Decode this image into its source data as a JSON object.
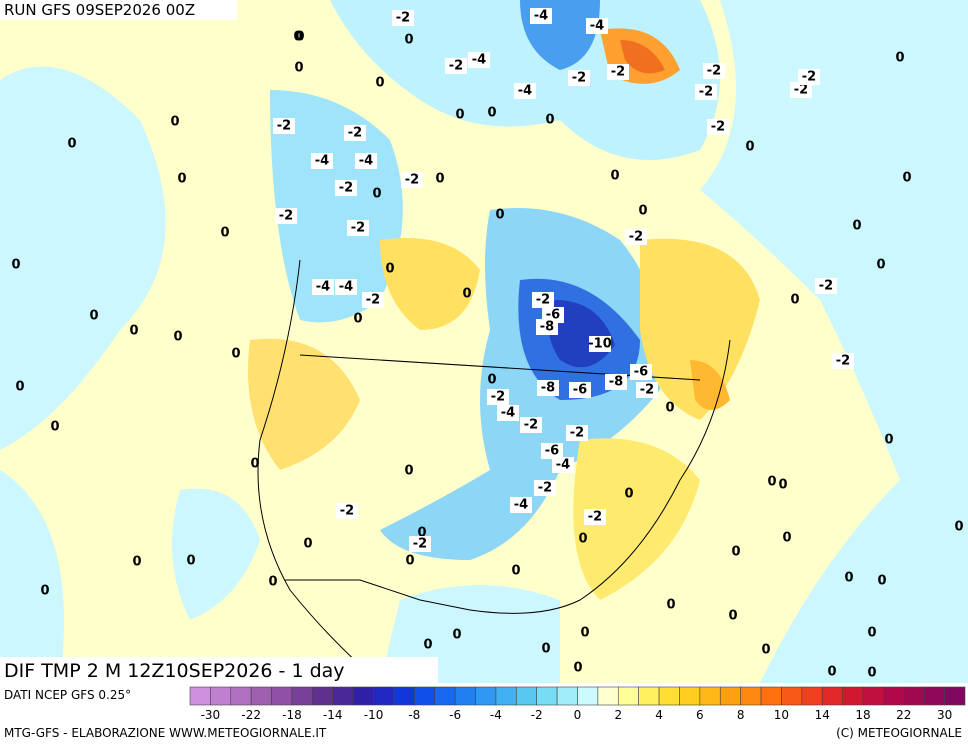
{
  "header": {
    "run": "RUN GFS 09SEP2026 00Z",
    "field": "DIF TMP 2 M 12Z10SEP2026 - 1 day",
    "source": "DATI NCEP GFS 0.25°",
    "credit": "MTG-GFS - ELABORAZIONE WWW.METEOGIORNALE.IT",
    "copyright": "(C) METEOGIORNALE"
  },
  "contour_labels": [
    -2,
    -4,
    -4,
    0,
    0,
    0,
    0,
    -2,
    -4,
    -4,
    -2,
    -2,
    -2,
    -2,
    -2,
    -2,
    0,
    0,
    -2,
    -2,
    0,
    0,
    0,
    -2,
    0,
    0,
    -4,
    -4,
    0,
    -2,
    0,
    -2,
    0,
    0,
    0,
    -2,
    0,
    -2,
    0,
    -2,
    0,
    0,
    0,
    0,
    0,
    -4,
    -4,
    -2,
    0,
    -2,
    0,
    -2,
    -6,
    -8,
    0,
    0,
    0,
    0,
    -10,
    0,
    -2,
    -6,
    -8,
    -8,
    -6,
    -2,
    0,
    -2,
    0,
    -4,
    0,
    -2,
    0,
    -2,
    0,
    -6,
    -4,
    0,
    0,
    0,
    0,
    -2,
    0,
    -4,
    -2,
    0,
    -2,
    -2,
    0,
    0,
    0,
    0,
    0,
    0,
    0,
    0,
    0,
    0,
    0,
    0,
    0,
    0,
    0,
    0,
    0,
    0,
    0,
    0,
    0,
    0,
    0,
    0,
    0
  ],
  "colorbar": {
    "ticks": [
      -30,
      -22,
      -18,
      -14,
      -10,
      -8,
      -6,
      -4,
      -2,
      0,
      2,
      4,
      6,
      8,
      10,
      14,
      18,
      22,
      30
    ],
    "colors": [
      "#d090e0",
      "#c080d0",
      "#b070c0",
      "#a060b0",
      "#9050a8",
      "#784098",
      "#603090",
      "#4a2898",
      "#3020a8",
      "#2028c0",
      "#1038d8",
      "#1050e8",
      "#1868f0",
      "#2080f0",
      "#3098f0",
      "#40b0f0",
      "#58c8f0",
      "#78dcf4",
      "#a0ecf8",
      "#ccfaff",
      "#ffffd0",
      "#ffff98",
      "#fff060",
      "#ffe030",
      "#ffcc20",
      "#ffb818",
      "#ffa010",
      "#ff8810",
      "#ff7010",
      "#f85818",
      "#f04020",
      "#e02828",
      "#d01830",
      "#c01040",
      "#b00848",
      "#a00850",
      "#900858",
      "#800860"
    ]
  }
}
